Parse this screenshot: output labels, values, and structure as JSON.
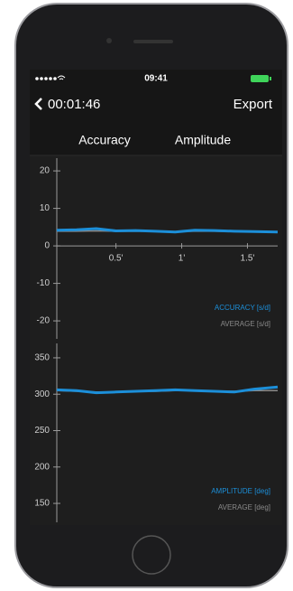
{
  "status": {
    "time": "09:41"
  },
  "nav": {
    "back": "00:01:46",
    "action": "Export"
  },
  "tabs": [
    "Accuracy",
    "Amplitude"
  ],
  "chart_data": [
    {
      "type": "line",
      "x": [
        0.05,
        0.2,
        0.35,
        0.5,
        0.65,
        0.8,
        0.95,
        1.1,
        1.25,
        1.4,
        1.55,
        1.73
      ],
      "xlim": [
        0.05,
        1.73
      ],
      "xticks": [
        {
          "value": 0.5,
          "label": "0.5'"
        },
        {
          "value": 1,
          "label": "1'"
        },
        {
          "value": 1.5,
          "label": "1.5'"
        }
      ],
      "ylim": [
        -24.8,
        23.4
      ],
      "yticks": [
        -20,
        -10,
        0,
        10,
        20
      ],
      "legend": "lower right",
      "series": [
        {
          "name": "ACCURACY [s/d]",
          "color": "#1c8fd9",
          "values": [
            4.2,
            4.3,
            4.6,
            4.0,
            4.1,
            3.9,
            3.7,
            4.2,
            4.1,
            3.9,
            3.8,
            3.7
          ]
        },
        {
          "name": "AVERAGE [s/d]",
          "color": "#8a8a8a",
          "values": [
            3.9,
            3.9,
            4.0,
            3.9,
            3.9,
            3.9,
            3.8,
            3.9,
            3.9,
            3.8,
            3.8,
            3.8
          ]
        }
      ]
    },
    {
      "type": "line",
      "x": [
        0.05,
        0.2,
        0.35,
        0.5,
        0.65,
        0.8,
        0.95,
        1.1,
        1.25,
        1.4,
        1.55,
        1.73
      ],
      "xlim": [
        0.05,
        1.73
      ],
      "ylim": [
        124,
        369.8
      ],
      "yticks": [
        150,
        200,
        250,
        300,
        350
      ],
      "legend": "lower right",
      "series": [
        {
          "name": "AMPLITUDE [deg]",
          "color": "#1c8fd9",
          "values": [
            306,
            305,
            302,
            303,
            304,
            305,
            306,
            305,
            304,
            303,
            307,
            310
          ]
        },
        {
          "name": "AVERAGE [deg]",
          "color": "#8a8a8a",
          "values": [
            305,
            304,
            303,
            303,
            304,
            304,
            305,
            305,
            304,
            304,
            305,
            305
          ]
        }
      ]
    }
  ]
}
